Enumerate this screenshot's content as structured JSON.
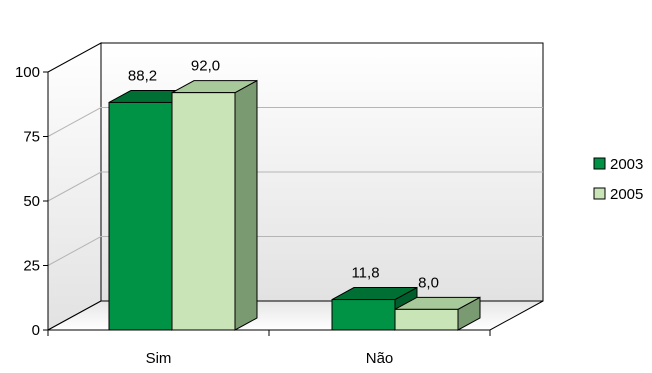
{
  "chart_data": {
    "type": "bar",
    "categories": [
      "Sim",
      "Não"
    ],
    "series": [
      {
        "name": "2003",
        "values": [
          88.2,
          11.8
        ],
        "labels": [
          "88,2",
          "11,8"
        ],
        "color": "#009245",
        "top_color": "#006f34",
        "side_color": "#005e2c"
      },
      {
        "name": "2005",
        "values": [
          92.0,
          8.0
        ],
        "labels": [
          "92,0",
          "8,0"
        ],
        "color": "#c9e5b8",
        "top_color": "#a8c99a",
        "side_color": "#7a9a72"
      }
    ],
    "yticks": [
      "0",
      "25",
      "50",
      "75",
      "100"
    ],
    "ylim": [
      0,
      100
    ],
    "grid": true,
    "legend_position": "right",
    "projection": "3d"
  }
}
